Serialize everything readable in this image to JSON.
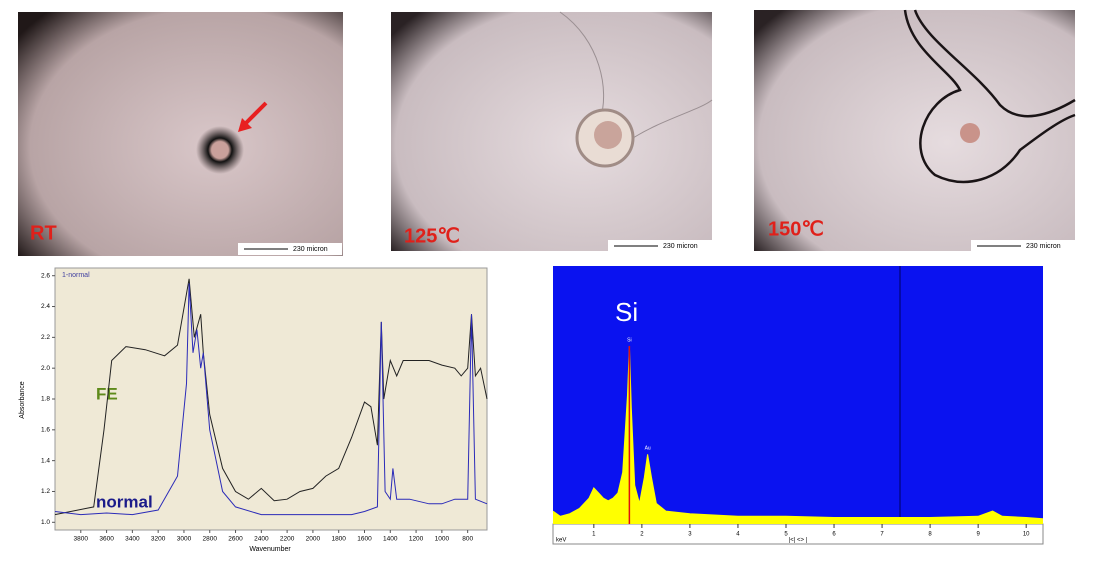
{
  "micrographs": [
    {
      "label": "RT",
      "scale_bar": "230 micron"
    },
    {
      "label": "125℃",
      "scale_bar": "230 micron"
    },
    {
      "label": "150℃",
      "scale_bar": "230 micron"
    }
  ],
  "chart_data": [
    {
      "type": "line",
      "legend_title": "1-normal",
      "y_label": "Absorbance",
      "x_label": "Wavenumber",
      "xlim": [
        4000,
        650
      ],
      "ylim": [
        0.95,
        2.65
      ],
      "xticks": [
        3800,
        3600,
        3400,
        3200,
        3000,
        2800,
        2600,
        2400,
        2200,
        2000,
        1800,
        1600,
        1400,
        1200,
        1000,
        800
      ],
      "yticks": [
        {
          "value": 1,
          "label": "1.0"
        },
        1.2,
        1.4,
        1.6,
        1.8,
        {
          "value": 2,
          "label": "2.0"
        },
        2.2,
        2.4,
        2.6
      ],
      "series": [
        {
          "name": "FE",
          "color": "#222222",
          "x": [
            4000,
            3700,
            3620,
            3560,
            3450,
            3300,
            3150,
            3050,
            2960,
            2920,
            2870,
            2850,
            2800,
            2700,
            2600,
            2500,
            2400,
            2300,
            2200,
            2100,
            2000,
            1900,
            1800,
            1700,
            1600,
            1550,
            1500,
            1470,
            1450,
            1400,
            1350,
            1300,
            1200,
            1100,
            1000,
            900,
            850,
            800,
            770,
            740,
            700,
            650
          ],
          "values": [
            1.05,
            1.1,
            1.6,
            2.05,
            2.14,
            2.12,
            2.08,
            2.15,
            2.58,
            2.2,
            2.35,
            2.1,
            1.7,
            1.35,
            1.2,
            1.15,
            1.22,
            1.14,
            1.15,
            1.2,
            1.22,
            1.3,
            1.35,
            1.55,
            1.78,
            1.75,
            1.5,
            2.3,
            1.8,
            2.05,
            1.95,
            2.05,
            2.05,
            2.05,
            2.02,
            2.0,
            1.95,
            2.0,
            2.35,
            1.95,
            2.0,
            1.8
          ]
        },
        {
          "name": "normal",
          "color": "#2b2bb8",
          "x": [
            4000,
            3800,
            3600,
            3400,
            3200,
            3050,
            2980,
            2960,
            2930,
            2900,
            2870,
            2850,
            2800,
            2700,
            2600,
            2400,
            2000,
            1700,
            1600,
            1500,
            1470,
            1440,
            1400,
            1380,
            1350,
            1250,
            1100,
            1000,
            900,
            800,
            770,
            740,
            650
          ],
          "values": [
            1.07,
            1.05,
            1.06,
            1.05,
            1.08,
            1.3,
            1.9,
            2.55,
            2.1,
            2.25,
            2.0,
            2.1,
            1.6,
            1.2,
            1.1,
            1.05,
            1.05,
            1.05,
            1.07,
            1.1,
            2.3,
            1.2,
            1.15,
            1.35,
            1.15,
            1.15,
            1.12,
            1.12,
            1.15,
            1.15,
            2.35,
            1.15,
            1.12
          ]
        }
      ]
    },
    {
      "type": "area",
      "element": "Si",
      "x_label": "keV",
      "nav_label": "|<| <> |",
      "xlim": [
        0.15,
        10.35
      ],
      "ylim": [
        0,
        100
      ],
      "xticks": [
        1,
        2,
        3,
        4,
        5,
        6,
        7,
        8,
        9,
        10
      ],
      "peaks": [
        {
          "label": "Si",
          "x": 1.74
        },
        {
          "label": "Au",
          "x": 2.12
        }
      ],
      "series": [
        {
          "name": "spectrum",
          "color": "#ffff00",
          "x": [
            0.15,
            0.3,
            0.5,
            0.7,
            0.9,
            1.0,
            1.1,
            1.2,
            1.3,
            1.4,
            1.5,
            1.6,
            1.7,
            1.74,
            1.78,
            1.85,
            1.95,
            2.05,
            2.12,
            2.2,
            2.3,
            2.5,
            3,
            4,
            5,
            6,
            7,
            8,
            9,
            9.3,
            9.5,
            10,
            10.35
          ],
          "values": [
            5,
            3,
            4,
            6,
            10,
            14,
            12,
            10,
            9,
            10,
            12,
            20,
            50,
            69,
            45,
            15,
            8,
            18,
            27,
            18,
            8,
            5,
            4,
            3,
            3,
            2.5,
            2.5,
            2.5,
            3,
            5,
            3,
            2.5,
            2
          ]
        }
      ]
    }
  ]
}
